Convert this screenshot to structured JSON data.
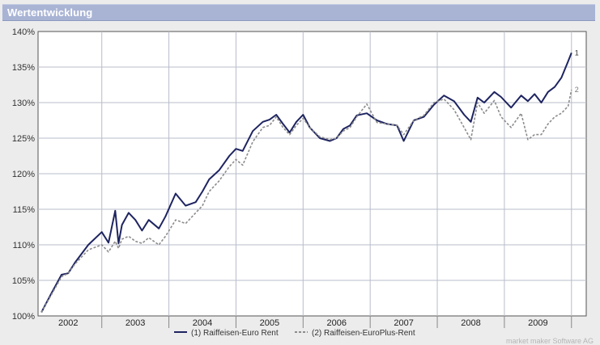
{
  "window": {
    "title": "Wertentwicklung"
  },
  "credit": "market maker Software AG",
  "colors": {
    "series_1": "#1e2460",
    "series_2": "#8c8c8c",
    "title_bar": "#a9b4d5",
    "plot_bg": "#ffffff",
    "grid": "#b9bccb"
  },
  "chart_data": {
    "type": "line",
    "title": "Wertentwicklung",
    "xlabel": "",
    "ylabel": "",
    "xlim": [
      2001.55,
      2009.72
    ],
    "ylim": [
      100,
      140
    ],
    "grid": true,
    "legend_position": "bottom-center",
    "x_ticks": [
      "2002",
      "2003",
      "2004",
      "2005",
      "2006",
      "2007",
      "2008",
      "2009"
    ],
    "y_ticks": [
      "100%",
      "105%",
      "110%",
      "115%",
      "120%",
      "125%",
      "130%",
      "135%",
      "140%"
    ],
    "series": [
      {
        "name": "Raiffeisen-Euro Rent",
        "legend_label": "(1)  Raiffeisen-Euro Rent",
        "end_label": "1",
        "style": "solid",
        "x": [
          2001.6,
          2001.75,
          2001.9,
          2002.0,
          2002.1,
          2002.3,
          2002.5,
          2002.6,
          2002.7,
          2002.75,
          2002.8,
          2002.9,
          2003.0,
          2003.1,
          2003.2,
          2003.35,
          2003.45,
          2003.6,
          2003.75,
          2003.9,
          2004.0,
          2004.1,
          2004.25,
          2004.4,
          2004.5,
          2004.6,
          2004.75,
          2004.9,
          2005.0,
          2005.1,
          2005.2,
          2005.3,
          2005.4,
          2005.5,
          2005.6,
          2005.75,
          2005.9,
          2006.0,
          2006.1,
          2006.2,
          2006.3,
          2006.45,
          2006.6,
          2006.75,
          2006.9,
          2007.0,
          2007.15,
          2007.3,
          2007.45,
          2007.6,
          2007.75,
          2007.9,
          2008.0,
          2008.1,
          2008.2,
          2008.35,
          2008.45,
          2008.6,
          2008.75,
          2008.85,
          2008.95,
          2009.05,
          2009.15,
          2009.25,
          2009.35,
          2009.45,
          2009.5
        ],
        "y": [
          100.5,
          103.2,
          105.8,
          106.0,
          107.5,
          110.0,
          111.8,
          110.3,
          114.8,
          110.2,
          112.8,
          114.5,
          113.5,
          112.0,
          113.5,
          112.3,
          114.0,
          117.2,
          115.5,
          116.0,
          117.5,
          119.2,
          120.5,
          122.5,
          123.5,
          123.2,
          126.0,
          127.3,
          127.6,
          128.3,
          127.0,
          125.8,
          127.3,
          128.3,
          126.5,
          125.0,
          124.6,
          125.0,
          126.3,
          126.8,
          128.2,
          128.5,
          127.5,
          127.0,
          126.8,
          124.6,
          127.5,
          128.0,
          129.7,
          131.0,
          130.2,
          128.3,
          127.3,
          130.7,
          130.0,
          131.5,
          130.8,
          129.3,
          131.0,
          130.2,
          131.2,
          130.0,
          131.5,
          132.2,
          133.5,
          135.8,
          137.0
        ]
      },
      {
        "name": "Raiffeisen-EuroPlus-Rent",
        "legend_label": "(2)  Raiffeisen-EuroPlus-Rent",
        "end_label": "2",
        "style": "dashed",
        "x": [
          2001.6,
          2001.75,
          2001.9,
          2002.0,
          2002.1,
          2002.3,
          2002.5,
          2002.6,
          2002.7,
          2002.75,
          2002.8,
          2002.9,
          2003.0,
          2003.1,
          2003.2,
          2003.35,
          2003.45,
          2003.6,
          2003.75,
          2003.9,
          2004.0,
          2004.1,
          2004.25,
          2004.4,
          2004.5,
          2004.6,
          2004.75,
          2004.9,
          2005.0,
          2005.1,
          2005.2,
          2005.3,
          2005.4,
          2005.5,
          2005.6,
          2005.75,
          2005.9,
          2006.0,
          2006.1,
          2006.2,
          2006.3,
          2006.45,
          2006.6,
          2006.75,
          2006.9,
          2007.0,
          2007.15,
          2007.3,
          2007.45,
          2007.6,
          2007.75,
          2007.9,
          2008.0,
          2008.1,
          2008.2,
          2008.35,
          2008.45,
          2008.6,
          2008.75,
          2008.85,
          2008.95,
          2009.05,
          2009.15,
          2009.25,
          2009.35,
          2009.45,
          2009.5
        ],
        "y": [
          100.5,
          103.0,
          105.5,
          106.0,
          107.3,
          109.3,
          110.0,
          109.0,
          110.5,
          109.5,
          110.8,
          111.2,
          110.5,
          110.2,
          111.0,
          110.0,
          111.2,
          113.5,
          113.0,
          114.5,
          115.5,
          117.5,
          119.0,
          121.0,
          122.0,
          121.2,
          124.5,
          126.5,
          126.8,
          128.0,
          126.5,
          125.5,
          126.8,
          127.8,
          126.5,
          125.2,
          124.8,
          125.0,
          126.0,
          126.5,
          128.0,
          129.8,
          127.2,
          127.0,
          126.8,
          125.5,
          127.5,
          128.2,
          130.0,
          130.5,
          129.0,
          126.5,
          124.8,
          130.0,
          128.5,
          130.3,
          128.0,
          126.5,
          128.5,
          124.8,
          125.5,
          125.5,
          127.0,
          128.0,
          128.5,
          129.5,
          131.8
        ]
      }
    ]
  }
}
